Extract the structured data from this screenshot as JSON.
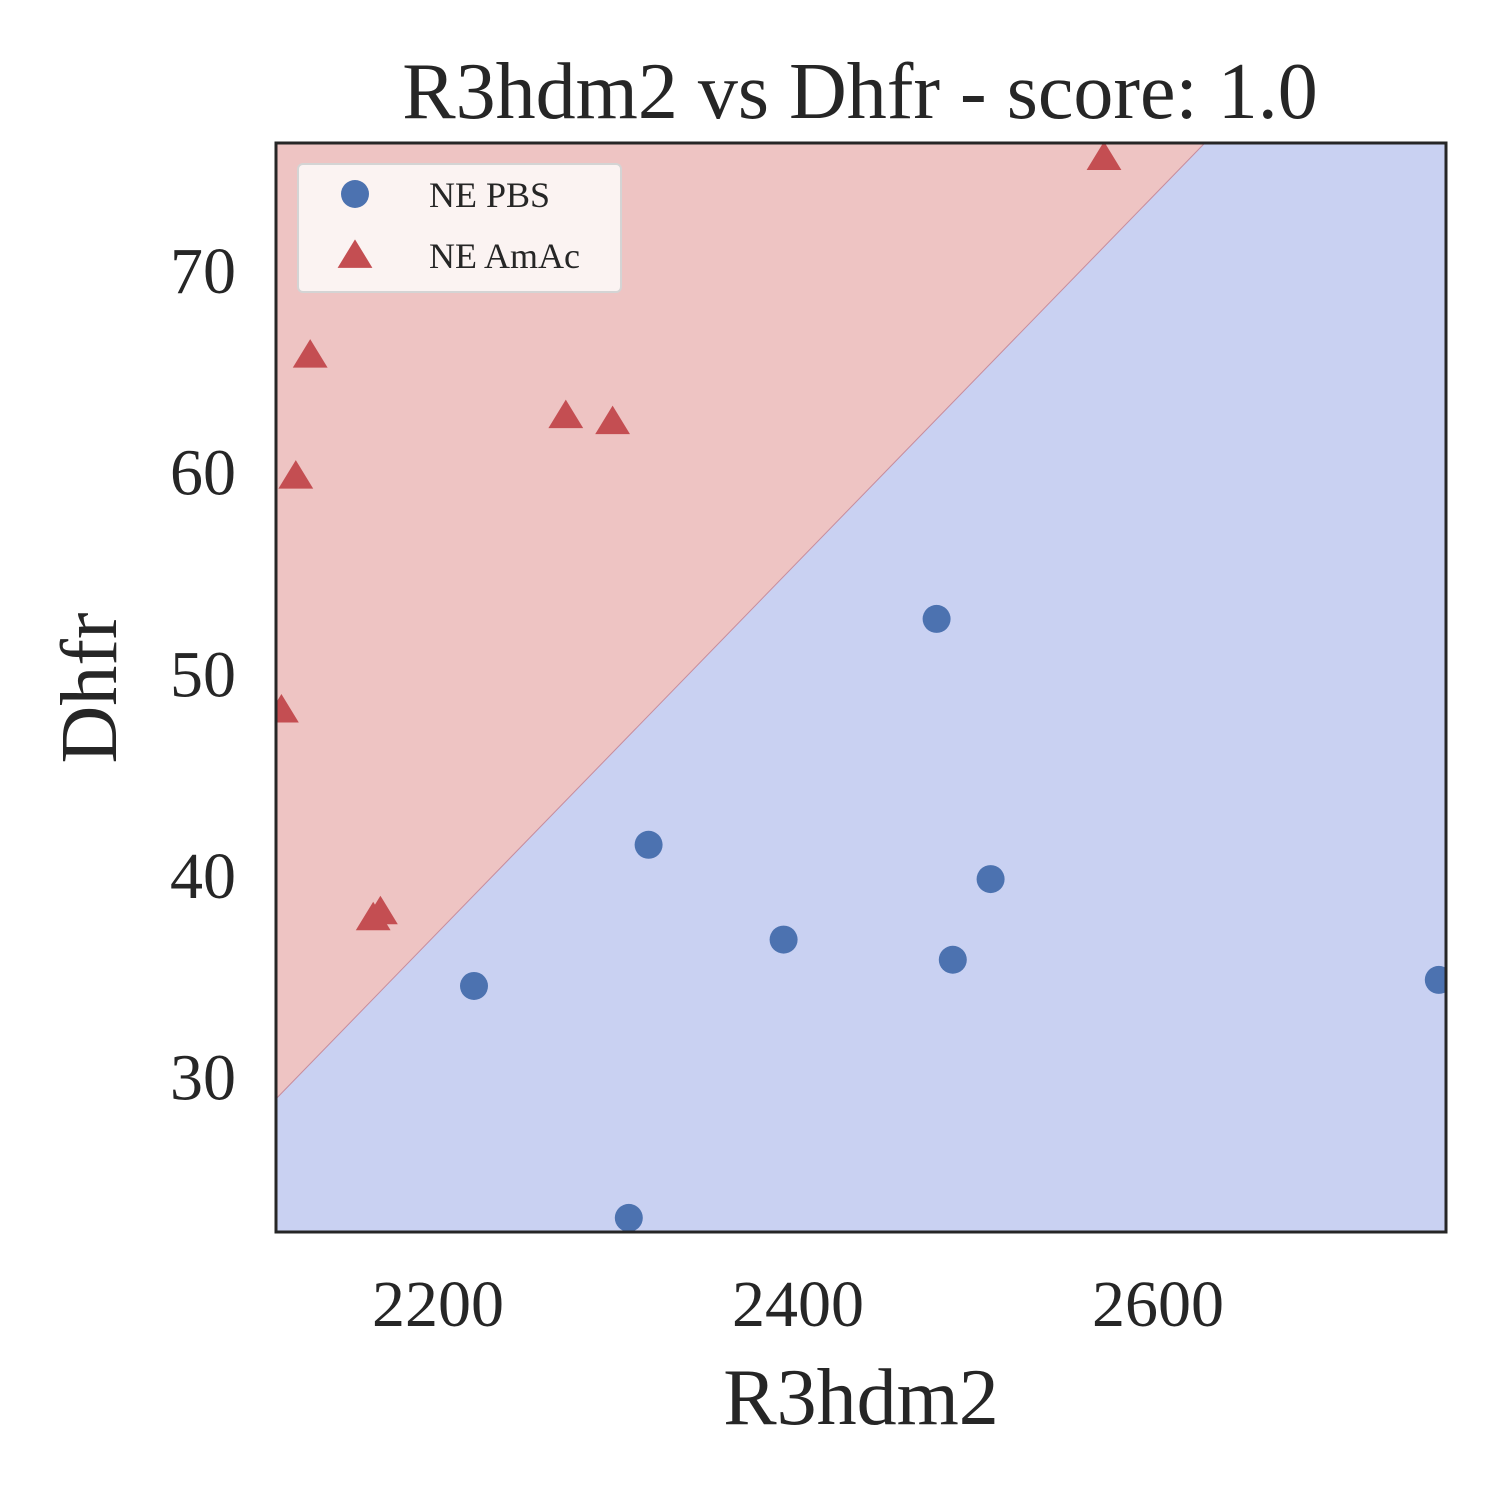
{
  "chart_data": {
    "type": "scatter",
    "title": "R3hdm2 vs Dhfr - score: 1.0",
    "xlabel": "R3hdm2",
    "ylabel": "Dhfr",
    "xlim": [
      2110,
      2760
    ],
    "ylim": [
      22.3,
      76.3
    ],
    "xticks": [
      2200,
      2400,
      2600
    ],
    "yticks": [
      30,
      40,
      50,
      60,
      70
    ],
    "legend_position": "upper-left",
    "grid": false,
    "decision_boundary": {
      "points": [
        [
          2110,
          28.9
        ],
        [
          2626,
          76.3
        ]
      ],
      "region_above_color": "#eec4c3",
      "region_below_color": "#c9d1f2",
      "boundary_color": "#c78c9c"
    },
    "series": [
      {
        "name": "NE PBS",
        "marker": "circle",
        "color": "#4c72b0",
        "x": [
          2220,
          2477,
          2317,
          2507,
          2392,
          2486,
          2756,
          2306
        ],
        "y": [
          34.5,
          52.7,
          41.5,
          39.8,
          36.8,
          35.8,
          34.8,
          23.0
        ]
      },
      {
        "name": "NE AmAc",
        "marker": "triangle",
        "color": "#c44e52",
        "x": [
          2570,
          2129,
          2121,
          2271,
          2297,
          2113,
          2164,
          2168
        ],
        "y": [
          75.5,
          65.7,
          59.7,
          62.7,
          62.4,
          48.1,
          37.8,
          38.1
        ]
      }
    ]
  }
}
